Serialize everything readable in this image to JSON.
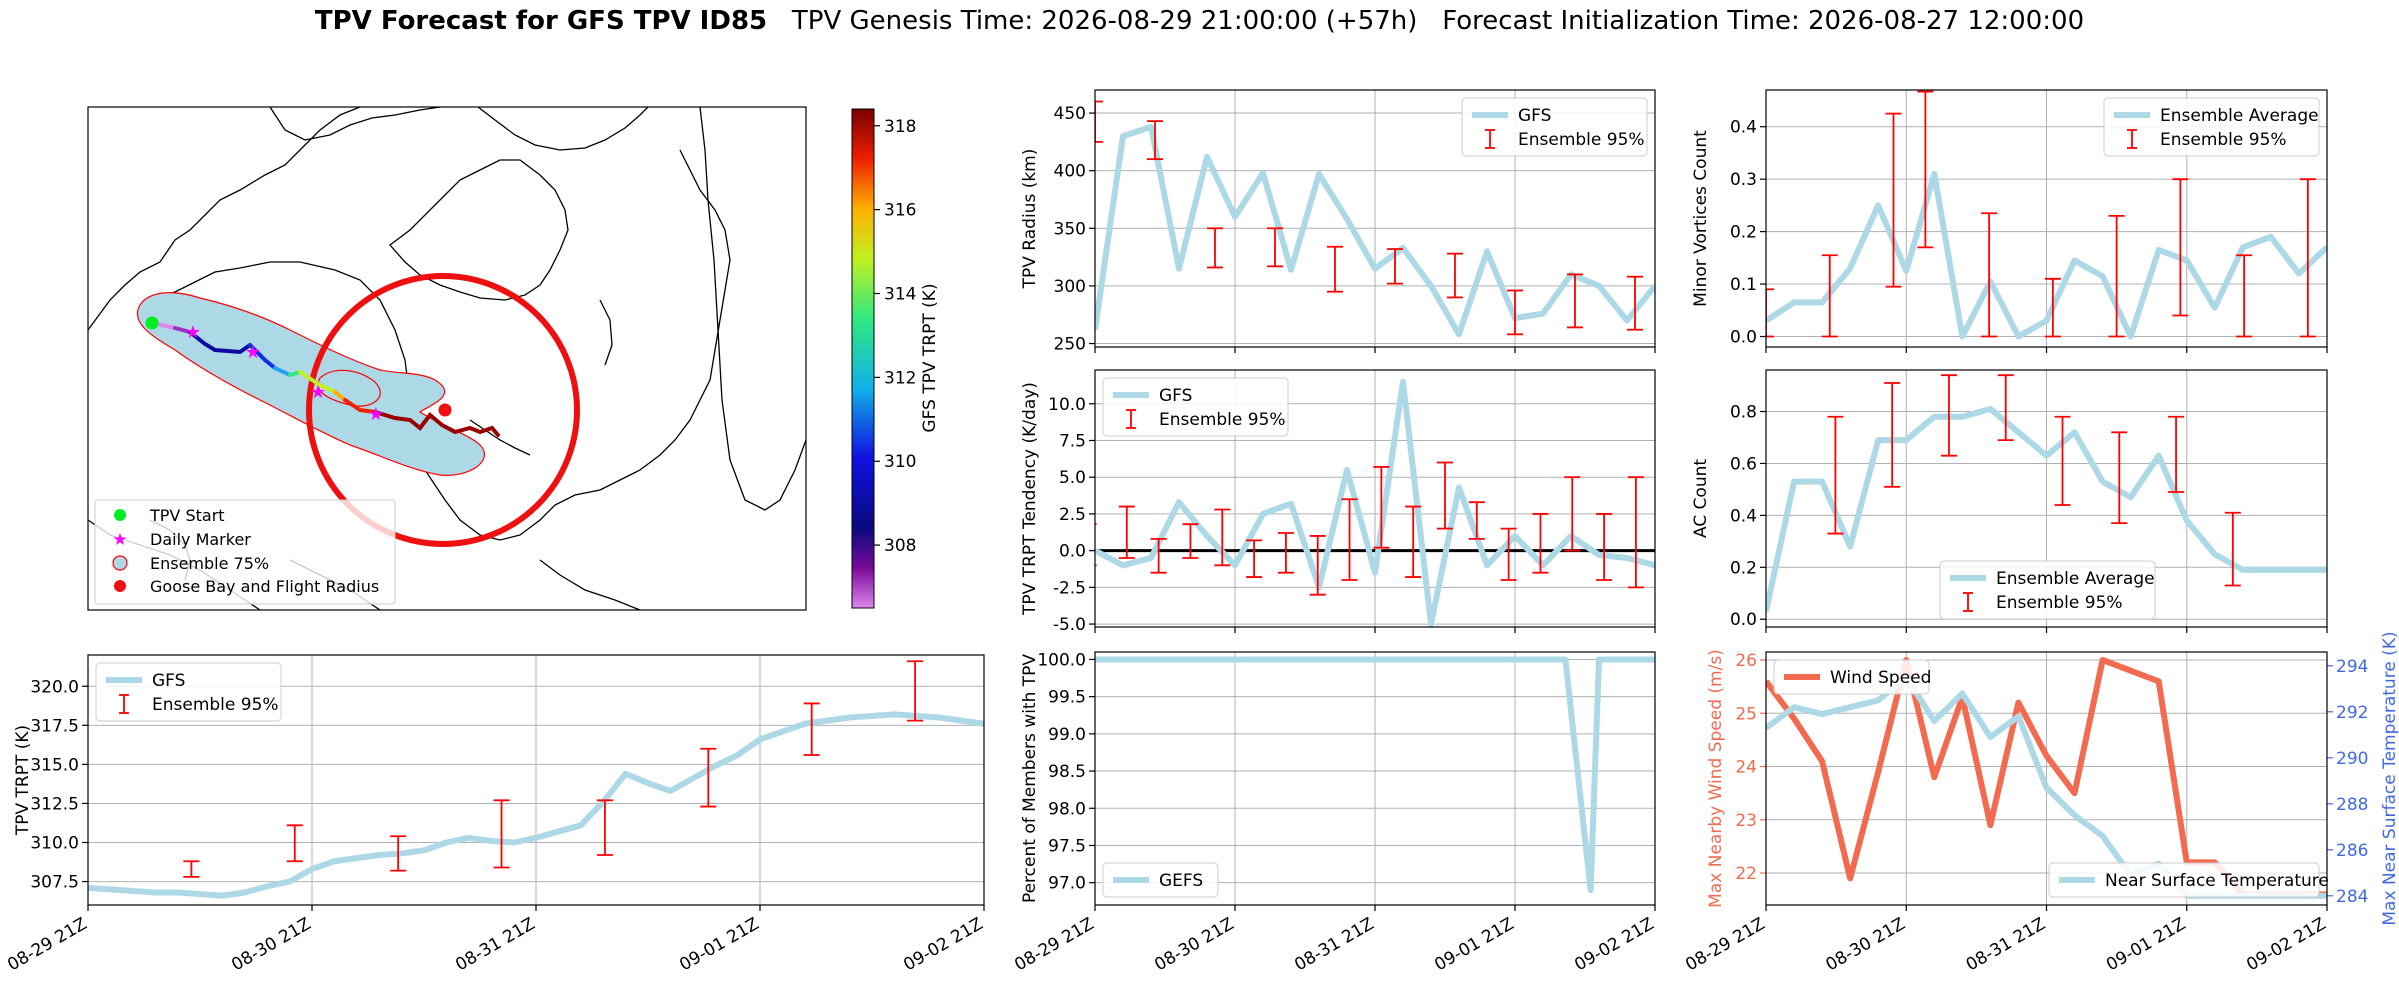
{
  "header": {
    "title": "TPV Forecast for GFS TPV ID85",
    "genesis": "TPV Genesis Time: 2026-08-29 21:00:00 (+57h)",
    "init": "Forecast Initialization Time: 2026-08-27 12:00:00"
  },
  "colors": {
    "gfs": "#add8e6",
    "ensemble": "#ff0000",
    "wind": "#f26a4f",
    "temp_axis": "#4169e1",
    "zero_line": "#000000"
  },
  "time_ticks": [
    "08-29 21Z",
    "08-30 21Z",
    "08-31 21Z",
    "09-01 21Z",
    "09-02 21Z"
  ],
  "map": {
    "colorbar_label": "GFS TPV TRPT (K)",
    "colorbar_ticks": [
      308,
      310,
      312,
      314,
      316,
      318
    ],
    "colorbar_range": [
      306.5,
      318.4
    ],
    "legend": [
      "TPV Start",
      "Daily Marker",
      "Ensemble 75%",
      "Goose Bay and Flight Radius"
    ]
  },
  "chart_data": [
    {
      "id": "trpt",
      "type": "line",
      "ylabel": "TPV TRPT (K)",
      "x": [
        0,
        0.5,
        1,
        1.5,
        2,
        2.5,
        3,
        3.5,
        4,
        4.5,
        5,
        5.5,
        6,
        6.5,
        7,
        7.5,
        8,
        8.5,
        9,
        9.5,
        10,
        10.5,
        11,
        11.5,
        12,
        12.5,
        13,
        13.5,
        14,
        14.5,
        15,
        15.5,
        16,
        16.5,
        17,
        17.5,
        18,
        18.5,
        19,
        19.5,
        20
      ],
      "y": [
        307.1,
        307.0,
        306.9,
        306.8,
        306.8,
        306.7,
        306.6,
        306.8,
        307.2,
        307.5,
        308.3,
        308.8,
        309.0,
        309.2,
        309.3,
        309.5,
        310.0,
        310.3,
        310.1,
        310.0,
        310.3,
        310.7,
        311.1,
        312.6,
        314.4,
        313.8,
        313.3,
        314.1,
        314.9,
        315.6,
        316.6,
        317.1,
        317.6,
        317.8,
        318.0,
        318.1,
        318.2,
        318.1,
        318.0,
        317.8,
        317.6
      ],
      "series_names": [
        "GFS",
        "Ensemble 95%"
      ],
      "ylim": [
        306,
        322
      ],
      "yticks": [
        307.5,
        310.0,
        312.5,
        315.0,
        317.5,
        320.0
      ],
      "errorbars": [
        [
          3,
          308.8,
          307.8
        ],
        [
          6,
          311.1,
          308.8
        ],
        [
          9,
          310.4,
          308.2
        ],
        [
          12,
          312.7,
          308.4
        ],
        [
          15,
          312.7,
          309.2
        ],
        [
          18,
          316.0,
          312.3
        ],
        [
          21,
          318.9,
          315.6
        ],
        [
          24,
          321.6,
          317.8
        ]
      ]
    },
    {
      "id": "radius",
      "type": "line",
      "ylabel": "TPV Radius (km)",
      "x": [
        0,
        1,
        2,
        3,
        4,
        5,
        6,
        7,
        8,
        9,
        10,
        11,
        12,
        13,
        14,
        15,
        16,
        17,
        18,
        19,
        20
      ],
      "y": [
        262,
        430,
        438,
        315,
        412,
        360,
        398,
        314,
        397,
        358,
        315,
        333,
        300,
        258,
        330,
        272,
        276,
        310,
        300,
        270,
        300
      ],
      "series_names": [
        "GFS",
        "Ensemble 95%"
      ],
      "ylim": [
        247,
        470
      ],
      "yticks": [
        250,
        300,
        350,
        400,
        450
      ],
      "errorbars": [
        [
          0,
          460,
          425
        ],
        [
          3,
          443,
          410
        ],
        [
          6,
          350,
          316
        ],
        [
          9,
          350,
          317
        ],
        [
          12,
          334,
          295
        ],
        [
          15,
          332,
          302
        ],
        [
          18,
          328,
          290
        ],
        [
          21,
          296,
          258
        ],
        [
          24,
          310,
          264
        ],
        [
          27,
          308,
          262
        ]
      ]
    },
    {
      "id": "tendency",
      "type": "line",
      "ylabel": "TPV TRPT Tendency (K/day)",
      "x": [
        0,
        1,
        2,
        3,
        4,
        5,
        6,
        7,
        8,
        9,
        10,
        11,
        12,
        13,
        14,
        15,
        16,
        17,
        18,
        19,
        20
      ],
      "y": [
        0,
        -1.0,
        -0.5,
        3.3,
        1.0,
        -1.0,
        2.5,
        3.2,
        -2.5,
        5.5,
        -1.5,
        11.5,
        -5.0,
        4.3,
        -1.0,
        1.0,
        -1.0,
        1.0,
        -0.3,
        -0.5,
        -1.0
      ],
      "series_names": [
        "GFS",
        "Ensemble 95%"
      ],
      "ylim": [
        -5.2,
        12.3
      ],
      "yticks": [
        -5.0,
        -2.5,
        0.0,
        2.5,
        5.0,
        7.5,
        10.0
      ],
      "errorbars": [
        [
          -0.2,
          1.8,
          -1.0
        ],
        [
          1,
          3.0,
          -0.5
        ],
        [
          2,
          0.8,
          -1.5
        ],
        [
          3,
          1.8,
          -0.5
        ],
        [
          4,
          2.8,
          -1.0
        ],
        [
          5,
          0.7,
          -1.8
        ],
        [
          6,
          1.2,
          -1.5
        ],
        [
          7,
          1.0,
          -3.0
        ],
        [
          8,
          3.5,
          -2.0
        ],
        [
          9,
          5.7,
          0.2
        ],
        [
          10,
          3.0,
          -1.8
        ],
        [
          11,
          6.0,
          1.5
        ],
        [
          12,
          3.3,
          0.8
        ],
        [
          13,
          1.5,
          -2.0
        ],
        [
          14,
          2.5,
          -1.5
        ],
        [
          15,
          5.0,
          0.0
        ],
        [
          16,
          2.5,
          -2.0
        ],
        [
          17,
          5.0,
          -2.5
        ]
      ]
    },
    {
      "id": "percent",
      "type": "line",
      "ylabel": "Percent of Members with TPV",
      "x": [
        0,
        16.8,
        17.7,
        18.0,
        18.6,
        20
      ],
      "y": [
        100,
        100,
        96.9,
        100,
        100,
        100
      ],
      "series_names": [
        "GEFS"
      ],
      "ylim": [
        96.7,
        100.1
      ],
      "yticks": [
        97.0,
        97.5,
        98.0,
        98.5,
        99.0,
        99.5,
        100.0
      ]
    },
    {
      "id": "minor",
      "type": "line",
      "ylabel": "Minor Vortices Count",
      "x": [
        0,
        1,
        2,
        3,
        4,
        5,
        6,
        7,
        8,
        9,
        10,
        11,
        12,
        13,
        14,
        15,
        16,
        17,
        18,
        19,
        20
      ],
      "y": [
        0.03,
        0.065,
        0.065,
        0.13,
        0.25,
        0.125,
        0.31,
        0.0,
        0.105,
        0.0,
        0.03,
        0.145,
        0.115,
        0.0,
        0.165,
        0.145,
        0.055,
        0.17,
        0.19,
        0.12,
        0.17
      ],
      "series_names": [
        "Ensemble Average",
        "Ensemble 95%"
      ],
      "ylim": [
        -0.02,
        0.47
      ],
      "yticks": [
        0.0,
        0.1,
        0.2,
        0.3,
        0.4
      ],
      "errorbars": [
        [
          0,
          0.09,
          0.0
        ],
        [
          2,
          0.155,
          0.0
        ],
        [
          4,
          0.425,
          0.095
        ],
        [
          5,
          0.467,
          0.17
        ],
        [
          7,
          0.235,
          0.0
        ],
        [
          9,
          0.11,
          0.0
        ],
        [
          11,
          0.23,
          0.0
        ],
        [
          13,
          0.3,
          0.04
        ],
        [
          15,
          0.155,
          0.0
        ],
        [
          17,
          0.3,
          0.0
        ]
      ]
    },
    {
      "id": "ac",
      "type": "line",
      "ylabel": "AC Count",
      "x": [
        0,
        1,
        2,
        3,
        4,
        5,
        6,
        7,
        8,
        9,
        10,
        11,
        12,
        13,
        14,
        15,
        16,
        17,
        18,
        19,
        20
      ],
      "y": [
        0.03,
        0.53,
        0.53,
        0.28,
        0.69,
        0.69,
        0.78,
        0.78,
        0.81,
        0.72,
        0.63,
        0.72,
        0.53,
        0.47,
        0.63,
        0.38,
        0.25,
        0.19,
        0.19,
        0.19,
        0.19
      ],
      "series_names": [
        "Ensemble Average",
        "Ensemble 95%"
      ],
      "ylim": [
        -0.03,
        0.96
      ],
      "yticks": [
        0.0,
        0.2,
        0.4,
        0.6,
        0.8
      ],
      "errorbars": [
        [
          2,
          0.78,
          0.33
        ],
        [
          4,
          0.91,
          0.51
        ],
        [
          6,
          0.94,
          0.63
        ],
        [
          8,
          0.94,
          0.69
        ],
        [
          10,
          0.78,
          0.44
        ],
        [
          12,
          0.72,
          0.37
        ],
        [
          14,
          0.78,
          0.49
        ],
        [
          16,
          0.41,
          0.13
        ]
      ]
    },
    {
      "id": "wind",
      "type": "line",
      "ylabel": "Max Nearby Wind Speed (m/s)",
      "ylabel2": "Max Near Surface Temperature (K)",
      "x": [
        0,
        1,
        2,
        3,
        4,
        5,
        6,
        7,
        8,
        9,
        10,
        11,
        12,
        13,
        14,
        15,
        16,
        17,
        18,
        19,
        20
      ],
      "wind": [
        25.6,
        24.9,
        24.1,
        21.9,
        23.9,
        26.0,
        23.8,
        25.3,
        22.9,
        25.2,
        24.2,
        23.5,
        26.0,
        25.8,
        25.6,
        22.2,
        22.2,
        21.6,
        21.6,
        21.6,
        21.6
      ],
      "temp": [
        291.3,
        292.2,
        291.9,
        292.2,
        292.5,
        293.5,
        291.6,
        292.8,
        290.9,
        291.8,
        288.7,
        287.5,
        286.6,
        284.9,
        285.4,
        284.0,
        284.0,
        284.0,
        284.0,
        284.0,
        284.0
      ],
      "series_names": [
        "Wind Speed",
        "Near Surface Temperature"
      ],
      "ylim": [
        21.4,
        26.15
      ],
      "yticks": [
        22,
        23,
        24,
        25,
        26
      ],
      "ylim2": [
        283.6,
        294.6
      ],
      "yticks2": [
        284,
        286,
        288,
        290,
        292,
        294
      ]
    }
  ]
}
